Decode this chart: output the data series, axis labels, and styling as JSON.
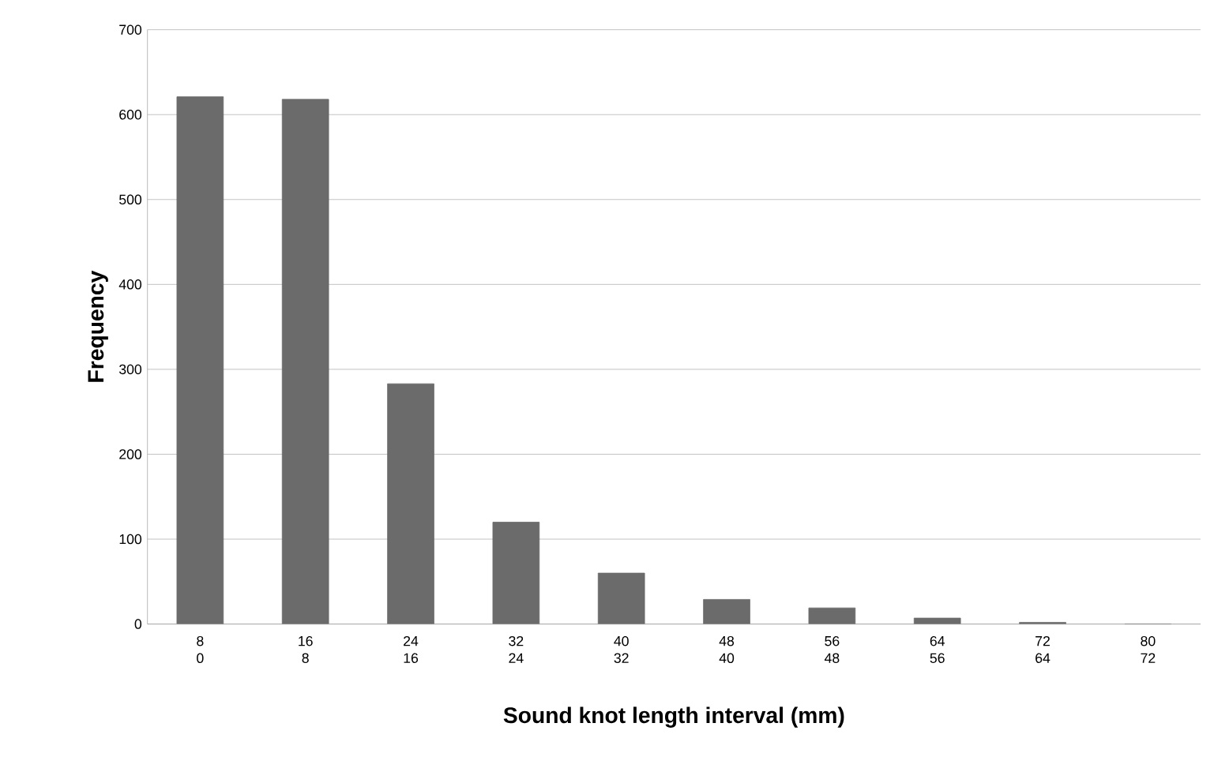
{
  "chart_data": {
    "type": "bar",
    "xlabel": "Sound knot length interval (mm)",
    "ylabel": "Frequency",
    "categories": [
      "8\n0",
      "16\n8",
      "24\n16",
      "32\n24",
      "40\n32",
      "48\n40",
      "56\n48",
      "64\n56",
      "72\n64",
      "80\n72"
    ],
    "values": [
      621,
      618,
      283,
      120,
      60,
      29,
      19,
      7,
      2,
      0
    ],
    "color": "#6b6b6b",
    "ylim": [
      0,
      700
    ],
    "yticks": [
      0,
      100,
      200,
      300,
      400,
      500,
      600,
      700
    ],
    "grid": "y"
  }
}
